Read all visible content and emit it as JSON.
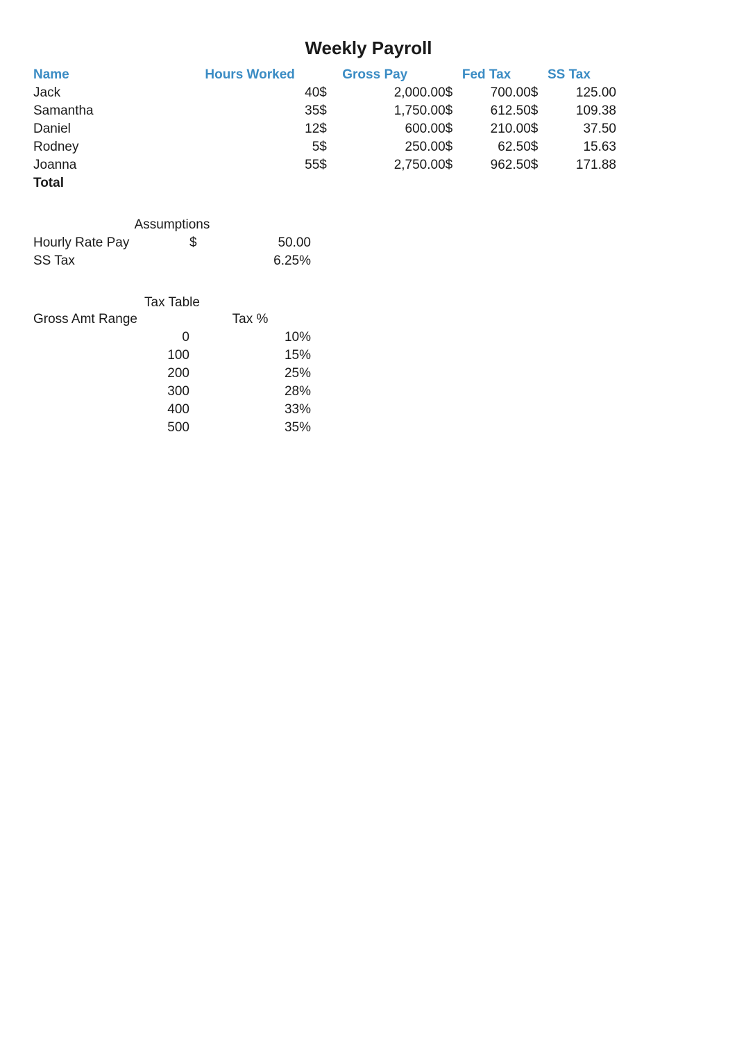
{
  "title": "Weekly Payroll",
  "header_color": "#3b8cc4",
  "text_color": "#1a1a1a",
  "columns": {
    "name": "Name",
    "hours": "Hours Worked",
    "gross": "Gross Pay",
    "fed": "Fed Tax",
    "ss": "SS Tax"
  },
  "currency_symbol": "$",
  "rows": [
    {
      "name": "Jack",
      "hours": "40",
      "gross": "2,000.00",
      "fed": "700.00",
      "ss": "125.00"
    },
    {
      "name": "Samantha",
      "hours": "35",
      "gross": "1,750.00",
      "fed": "612.50",
      "ss": "109.38"
    },
    {
      "name": "Daniel",
      "hours": "12",
      "gross": "600.00",
      "fed": "210.00",
      "ss": "37.50"
    },
    {
      "name": "Rodney",
      "hours": "5",
      "gross": "250.00",
      "fed": "62.50",
      "ss": "15.63"
    },
    {
      "name": "Joanna",
      "hours": "55",
      "gross": "2,750.00",
      "fed": "962.50",
      "ss": "171.88"
    }
  ],
  "total_label": "Total",
  "assumptions": {
    "title": "Assumptions",
    "items": [
      {
        "label": "Hourly Rate Pay",
        "currency": "$",
        "value": "50.00"
      },
      {
        "label": "SS Tax",
        "currency": "",
        "value": "6.25%"
      }
    ]
  },
  "tax_table": {
    "title": "Tax Table",
    "range_label": "Gross Amt Range",
    "pct_label": "Tax %",
    "rows": [
      {
        "range": "0",
        "pct": "10%"
      },
      {
        "range": "100",
        "pct": "15%"
      },
      {
        "range": "200",
        "pct": "25%"
      },
      {
        "range": "300",
        "pct": "28%"
      },
      {
        "range": "400",
        "pct": "33%"
      },
      {
        "range": "500",
        "pct": "35%"
      }
    ]
  }
}
